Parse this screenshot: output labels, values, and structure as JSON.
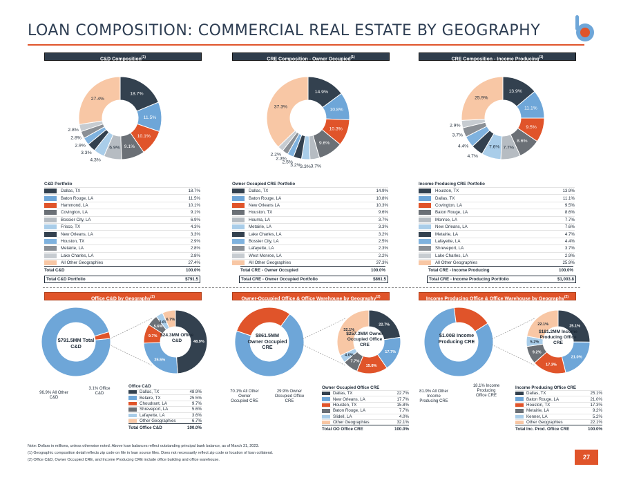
{
  "title": "LOAN COMPOSITION: COMMERCIAL REAL ESTATE BY GEOGRAPHY",
  "page_number": "27",
  "colors": {
    "navy": "#33414f",
    "lightblue": "#6ea6d8",
    "orange": "#e0542a",
    "gray": "#6b7076",
    "lightgray": "#b6bcc2",
    "peach": "#f8c7a5",
    "paleblue": "#a9cde9"
  },
  "headers": {
    "cd": "C&D Composition",
    "oo": "CRE Composition - Owner Occupied",
    "ip": "CRE Composition - Income Producing",
    "sup": "(1)",
    "office_cd": "Office C&D by Geography",
    "office_oo": "Owner-Occupied Office & Office Warehouse by Geography",
    "office_ip": "Income Producing Office & Office Warehouse by Geography",
    "sup2": "(2)"
  },
  "cd_portfolio": {
    "caption": "C&D Portfolio",
    "rows": [
      {
        "label": "Dallas, TX",
        "value": "18.7%",
        "color": "#33414f"
      },
      {
        "label": "Baton Rouge, LA",
        "value": "11.5%",
        "color": "#6ea6d8"
      },
      {
        "label": "Hammond, LA",
        "value": "10.1%",
        "color": "#e0542a"
      },
      {
        "label": "Covington, LA",
        "value": "9.1%",
        "color": "#6b7076"
      },
      {
        "label": "Bossier City, LA",
        "value": "6.9%",
        "color": "#b6bcc2"
      },
      {
        "label": "Frisco, TX",
        "value": "4.3%",
        "color": "#a9cde9"
      },
      {
        "label": "New Orleans, LA",
        "value": "3.3%",
        "color": "#33414f"
      },
      {
        "label": "Houston, TX",
        "value": "2.9%",
        "color": "#7fb2de"
      },
      {
        "label": "Metairie, LA",
        "value": "2.8%",
        "color": "#8a8f95"
      },
      {
        "label": "Lake Charles, LA",
        "value": "2.8%",
        "color": "#c7ccd1"
      },
      {
        "label": "All Other Geographies",
        "value": "27.4%",
        "color": "#f8c7a5"
      }
    ],
    "total_label": "Total C&D",
    "total_value": "100.0%",
    "portfolio_label": "Total C&D Portfolio",
    "portfolio_value": "$791.5"
  },
  "oo_portfolio": {
    "caption": "Owner Occupied CRE Portfolio",
    "rows": [
      {
        "label": "Dallas, TX",
        "value": "14.9%",
        "color": "#33414f"
      },
      {
        "label": "Baton Rouge, LA",
        "value": "10.8%",
        "color": "#6ea6d8"
      },
      {
        "label": "New Orleans LA",
        "value": "10.3%",
        "color": "#e0542a"
      },
      {
        "label": "Houston, TX",
        "value": "9.6%",
        "color": "#6b7076"
      },
      {
        "label": "Houma, LA",
        "value": "3.7%",
        "color": "#b6bcc2"
      },
      {
        "label": "Metairie, LA",
        "value": "3.3%",
        "color": "#a9cde9"
      },
      {
        "label": "Lake Charles, LA",
        "value": "3.2%",
        "color": "#33414f"
      },
      {
        "label": "Bossier City, LA",
        "value": "2.5%",
        "color": "#7fb2de"
      },
      {
        "label": "Lafayette, LA",
        "value": "2.3%",
        "color": "#8a8f95"
      },
      {
        "label": "West Monroe, LA",
        "value": "2.2%",
        "color": "#c7ccd1"
      },
      {
        "label": "All Other Geographies",
        "value": "37.3%",
        "color": "#f8c7a5"
      }
    ],
    "total_label": "Total CRE - Owner Occupied",
    "total_value": "100.0%",
    "portfolio_label": "Total CRE - Owner Occupied Portfolio",
    "portfolio_value": "$861.5"
  },
  "ip_portfolio": {
    "caption": "Income Producing CRE Portfolio",
    "rows": [
      {
        "label": "Houston, TX",
        "value": "13.9%",
        "color": "#33414f"
      },
      {
        "label": "Dallas, TX",
        "value": "11.1%",
        "color": "#6ea6d8"
      },
      {
        "label": "Covington, LA",
        "value": "9.5%",
        "color": "#e0542a"
      },
      {
        "label": "Baton Rouge, LA",
        "value": "8.6%",
        "color": "#6b7076"
      },
      {
        "label": "Monroe, LA",
        "value": "7.7%",
        "color": "#b6bcc2"
      },
      {
        "label": "New Orleans, LA",
        "value": "7.6%",
        "color": "#a9cde9"
      },
      {
        "label": "Metairie, LA",
        "value": "4.7%",
        "color": "#33414f"
      },
      {
        "label": "Lafayette, LA",
        "value": "4.4%",
        "color": "#7fb2de"
      },
      {
        "label": "Shreveport, LA",
        "value": "3.7%",
        "color": "#8a8f95"
      },
      {
        "label": "Lake Charles, LA",
        "value": "2.9%",
        "color": "#c7ccd1"
      },
      {
        "label": "All Other Geographies",
        "value": "25.9%",
        "color": "#f8c7a5"
      }
    ],
    "total_label": "Total CRE - Income Producing",
    "total_value": "100.0%",
    "portfolio_label": "Total CRE - Income Producing Portfolio",
    "portfolio_value": "$1,003.8"
  },
  "chart_data": [
    {
      "type": "pie",
      "name": "cd",
      "values": [
        18.7,
        11.5,
        10.1,
        9.1,
        6.9,
        4.3,
        3.3,
        2.9,
        2.8,
        2.8,
        27.4
      ],
      "labels": [
        "18.7%",
        "11.5%",
        "10.1%",
        "9.1%",
        "6.9%",
        "4.3%",
        "3.3%",
        "2.9%",
        "2.8%",
        "2.8%",
        "27.4%"
      ],
      "colors": [
        "#33414f",
        "#6ea6d8",
        "#e0542a",
        "#6b7076",
        "#b6bcc2",
        "#a9cde9",
        "#33414f",
        "#7fb2de",
        "#8a8f95",
        "#c7ccd1",
        "#f8c7a5"
      ]
    },
    {
      "type": "pie",
      "name": "oo",
      "values": [
        14.9,
        10.8,
        10.3,
        9.6,
        3.7,
        3.3,
        3.2,
        2.5,
        2.3,
        2.2,
        37.3
      ],
      "labels": [
        "14.9%",
        "10.8%",
        "10.3%",
        "9.6%",
        "3.7%",
        "3.3%",
        "3.2%",
        "2.5%",
        "2.3%",
        "2.2%",
        "37.3%"
      ],
      "colors": [
        "#33414f",
        "#6ea6d8",
        "#e0542a",
        "#6b7076",
        "#b6bcc2",
        "#a9cde9",
        "#33414f",
        "#7fb2de",
        "#8a8f95",
        "#c7ccd1",
        "#f8c7a5"
      ]
    },
    {
      "type": "pie",
      "name": "ip",
      "values": [
        13.9,
        11.1,
        9.5,
        8.6,
        7.7,
        7.6,
        4.7,
        4.4,
        3.7,
        2.9,
        25.9
      ],
      "labels": [
        "13.9%",
        "11.1%",
        "9.5%",
        "8.6%",
        "7.7%",
        "7.6%",
        "4.7%",
        "4.4%",
        "3.7%",
        "2.9%",
        "25.9%"
      ],
      "colors": [
        "#33414f",
        "#6ea6d8",
        "#e0542a",
        "#6b7076",
        "#b6bcc2",
        "#a9cde9",
        "#33414f",
        "#7fb2de",
        "#8a8f95",
        "#c7ccd1",
        "#f8c7a5"
      ]
    },
    {
      "type": "pie",
      "name": "office_cd_total",
      "values": [
        96.9,
        3.1
      ],
      "labels": [
        "96.9%",
        "3.1%"
      ],
      "colors": [
        "#6ea6d8",
        "#e0542a"
      ]
    },
    {
      "type": "pie",
      "name": "office_cd",
      "values": [
        48.9,
        25.5,
        9.7,
        5.6,
        3.6,
        6.7
      ],
      "labels": [
        "48.9%",
        "25.5%",
        "9.7%",
        "5.6%",
        "3.6%",
        "6.7%"
      ],
      "colors": [
        "#33414f",
        "#6ea6d8",
        "#e0542a",
        "#6b7076",
        "#a9cde9",
        "#f8c7a5"
      ]
    },
    {
      "type": "pie",
      "name": "office_oo_total",
      "values": [
        70.1,
        29.9
      ],
      "labels": [
        "70.1%",
        "29.9%"
      ],
      "colors": [
        "#6ea6d8",
        "#e0542a"
      ]
    },
    {
      "type": "pie",
      "name": "office_oo",
      "values": [
        22.7,
        17.7,
        15.8,
        7.7,
        4.0,
        32.1
      ],
      "labels": [
        "22.7%",
        "17.7%",
        "15.8%",
        "7.7%",
        "4.0%",
        "32.1%"
      ],
      "colors": [
        "#33414f",
        "#6ea6d8",
        "#e0542a",
        "#6b7076",
        "#a9cde9",
        "#f8c7a5"
      ]
    },
    {
      "type": "pie",
      "name": "office_ip_total",
      "values": [
        81.9,
        18.1
      ],
      "labels": [
        "81.9%",
        "18.1%"
      ],
      "colors": [
        "#6ea6d8",
        "#e0542a"
      ]
    },
    {
      "type": "pie",
      "name": "office_ip",
      "values": [
        25.1,
        21.0,
        17.3,
        9.2,
        5.2,
        22.1
      ],
      "labels": [
        "25.1%",
        "21.0%",
        "17.3%",
        "9.2%",
        "5.2%",
        "22.1%"
      ],
      "colors": [
        "#33414f",
        "#6ea6d8",
        "#e0542a",
        "#6b7076",
        "#a9cde9",
        "#f8c7a5"
      ]
    }
  ],
  "office_cd": {
    "outer_center": "$791.5MM Total C&D",
    "inner_center": "$24.3MM Office C&D",
    "ann_other": "96.9% All Other C&D",
    "ann_office": "3.1% Office C&D",
    "caption": "Office C&D",
    "rows": [
      {
        "label": "Dallas, TX",
        "value": "48.9%",
        "color": "#33414f"
      },
      {
        "label": "Belaire, TX",
        "value": "25.5%",
        "color": "#6ea6d8"
      },
      {
        "label": "Choudrant, LA",
        "value": "9.7%",
        "color": "#e0542a"
      },
      {
        "label": "Shreveport, LA",
        "value": "5.6%",
        "color": "#6b7076"
      },
      {
        "label": "Lafayette, LA",
        "value": "3.6%",
        "color": "#a9cde9"
      },
      {
        "label": "Other Geographies",
        "value": "6.7%",
        "color": "#f8c7a5"
      }
    ],
    "total_label": "Total Office C&D",
    "total_value": "100.0%"
  },
  "office_oo": {
    "outer_center": "$861.5MM Owner Occupied CRE",
    "inner_center": "$257.3MM Owner Occupied Office CRE",
    "ann_other": "70.1% All Other Owner Occupied CRE",
    "ann_office": "29.9% Owner Occupied Office CRE",
    "caption": "Owner Occupied Office CRE",
    "rows": [
      {
        "label": "Dallas, TX",
        "value": "22.7%",
        "color": "#33414f"
      },
      {
        "label": "New Orleans, LA",
        "value": "17.7%",
        "color": "#6ea6d8"
      },
      {
        "label": "Houston, TX",
        "value": "15.8%",
        "color": "#e0542a"
      },
      {
        "label": "Baton Rouge, LA",
        "value": "7.7%",
        "color": "#6b7076"
      },
      {
        "label": "Slidell, LA",
        "value": "4.0%",
        "color": "#a9cde9"
      },
      {
        "label": "Other Geographies",
        "value": "32.1%",
        "color": "#f8c7a5"
      }
    ],
    "total_label": "Total OO Office CRE",
    "total_value": "100.0%"
  },
  "office_ip": {
    "outer_center": "$1.00B Income Producing CRE",
    "inner_center": "$181.2MM Income Producing Office CRE",
    "ann_other": "81.9% All Other Income Producing CRE",
    "ann_office": "18.1% Income Producing Office CRE",
    "caption": "Income Producing Office CRE",
    "rows": [
      {
        "label": "Dallas, TX",
        "value": "25.1%",
        "color": "#33414f"
      },
      {
        "label": "Baton Rouge, LA",
        "value": "21.0%",
        "color": "#6ea6d8"
      },
      {
        "label": "Houston, TX",
        "value": "17.3%",
        "color": "#e0542a"
      },
      {
        "label": "Metairie, LA",
        "value": "9.2%",
        "color": "#6b7076"
      },
      {
        "label": "Kenner, LA",
        "value": "5.2%",
        "color": "#a9cde9"
      },
      {
        "label": "Other Geographies",
        "value": "22.1%",
        "color": "#f8c7a5"
      }
    ],
    "total_label": "Total Inc. Prod. Office CRE",
    "total_value": "100.0%"
  },
  "notes": [
    "Note: Dollars in millions, unless otherwise noted. Above loan balances reflect outstanding principal bank balance, as of March 31, 2023.",
    "(1)      Geographic composition detail reflects zip code on file in loan source files. Does not necessarily reflect zip code or location of loan collateral.",
    "(2)      Office C&D, Owner Occupied CRE, and Income Producing CRE include office building and office warehouse."
  ]
}
